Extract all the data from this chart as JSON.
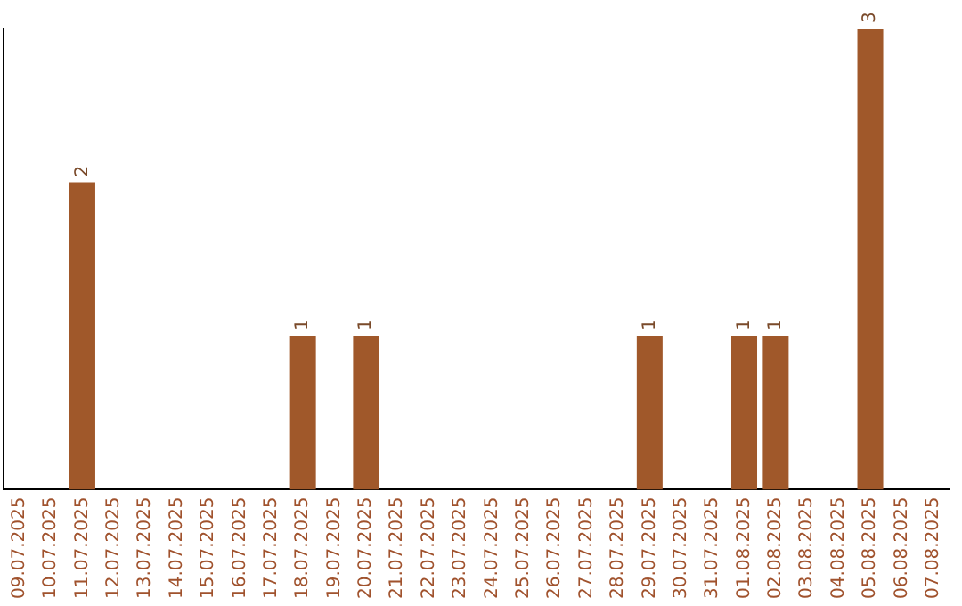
{
  "chart_data": {
    "type": "bar",
    "categories": [
      "09.07.2025",
      "10.07.2025",
      "11.07.2025",
      "12.07.2025",
      "13.07.2025",
      "14.07.2025",
      "15.07.2025",
      "16.07.2025",
      "17.07.2025",
      "18.07.2025",
      "19.07.2025",
      "20.07.2025",
      "21.07.2025",
      "22.07.2025",
      "23.07.2025",
      "24.07.2025",
      "25.07.2025",
      "26.07.2025",
      "27.07.2025",
      "28.07.2025",
      "29.07.2025",
      "30.07.2025",
      "31.07.2025",
      "01.08.2025",
      "02.08.2025",
      "03.08.2025",
      "04.08.2025",
      "05.08.2025",
      "06.08.2025",
      "07.08.2025"
    ],
    "values": [
      0,
      0,
      2,
      0,
      0,
      0,
      0,
      0,
      0,
      1,
      0,
      1,
      0,
      0,
      0,
      0,
      0,
      0,
      0,
      0,
      1,
      0,
      0,
      1,
      1,
      0,
      0,
      3,
      0,
      0
    ],
    "color": "#a0582a",
    "value_labels": [
      null,
      null,
      "2",
      null,
      null,
      null,
      null,
      null,
      null,
      "1",
      null,
      "1",
      null,
      null,
      null,
      null,
      null,
      null,
      null,
      null,
      "1",
      null,
      null,
      "1",
      "1",
      null,
      null,
      "3",
      null,
      null
    ],
    "tick_labels": "x",
    "grid": false,
    "legend": false
  }
}
